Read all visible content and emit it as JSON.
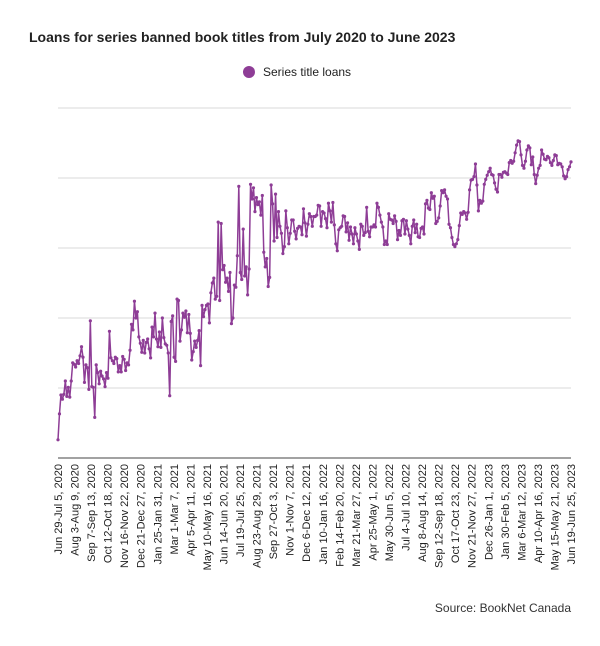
{
  "source_text": "Source: BookNet Canada",
  "colors": {
    "series": "#8e3d96",
    "grid": "#d9d9d9",
    "axis": "#444444"
  },
  "chart_data": {
    "type": "line",
    "title": "Loans for series banned book titles from July 2020 to June 2023",
    "xlabel": "",
    "ylabel": "",
    "ylim": [
      0,
      500
    ],
    "y_gridlines": [
      0,
      100,
      200,
      300,
      400,
      500
    ],
    "y_tick_labels_visible": false,
    "grid": true,
    "legend_position": "top-center",
    "x_tick_labels": [
      "Jun 29-Jul 5, 2020",
      "Aug 3-Aug 9, 2020",
      "Sep 7-Sep 13, 2020",
      "Oct 12-Oct 18, 2020",
      "Nov 16-Nov 22, 2020",
      "Dec 21-Dec 27, 2020",
      "Jan 25-Jan 31, 2021",
      "Mar 1-Mar 7, 2021",
      "Apr 5-Apr 11, 2021",
      "May 10-May 16, 2021",
      "Jun 14-Jun 20, 2021",
      "Jul 19-Jul 25, 2021",
      "Aug 23-Aug 29, 2021",
      "Sep 27-Oct 3, 2021",
      "Nov 1-Nov 7, 2021",
      "Dec 6-Dec 12, 2021",
      "Jan 10-Jan 16, 2022",
      "Feb 14-Feb 20, 2022",
      "Mar 21-Mar 27, 2022",
      "Apr 25-May 1, 2022",
      "May 30-Jun 5, 2022",
      "Jul 4-Jul 10, 2022",
      "Aug 8-Aug 14, 2022",
      "Sep 12-Sep 18, 2022",
      "Oct 17-Oct 23, 2022",
      "Nov 21-Nov 27, 2022",
      "Dec 26-Jan 1, 2023",
      "Jan 30-Feb 5, 2023",
      "Mar 6-Mar 12, 2023",
      "Apr 10-Apr 16, 2023",
      "May 15-May 21, 2023",
      "Jun 19-Jun 25, 2023"
    ],
    "series": [
      {
        "name": "Series title loans",
        "values": [
          26,
          63,
          90,
          84,
          91,
          110,
          88,
          101,
          87,
          110,
          136,
          134,
          130,
          139,
          135,
          146,
          159,
          144,
          108,
          133,
          129,
          98,
          196,
          102,
          101,
          58,
          133,
          122,
          106,
          124,
          117,
          113,
          102,
          122,
          114,
          181,
          143,
          139,
          135,
          144,
          142,
          123,
          132,
          123,
          145,
          141,
          125,
          136,
          133,
          154,
          191,
          183,
          224,
          200,
          209,
          173,
          164,
          151,
          168,
          150,
          165,
          170,
          156,
          143,
          187,
          173,
          207,
          170,
          159,
          180,
          158,
          200,
          172,
          163,
          161,
          150,
          89,
          195,
          203,
          144,
          138,
          227,
          225,
          167,
          183,
          207,
          201,
          210,
          179,
          205,
          178,
          140,
          152,
          167,
          158,
          168,
          182,
          132,
          218,
          202,
          212,
          218,
          220,
          193,
          236,
          250,
          257,
          227,
          231,
          337,
          225,
          335,
          269,
          275,
          251,
          257,
          238,
          265,
          192,
          200,
          247,
          244,
          289,
          388,
          265,
          255,
          327,
          260,
          273,
          233,
          270,
          391,
          370,
          386,
          352,
          372,
          362,
          366,
          347,
          375,
          294,
          273,
          285,
          245,
          258,
          390,
          363,
          310,
          377,
          315,
          352,
          331,
          321,
          292,
          302,
          353,
          329,
          306,
          321,
          340,
          340,
          324,
          313,
          328,
          331,
          330,
          319,
          356,
          336,
          317,
          334,
          349,
          345,
          331,
          345,
          345,
          347,
          361,
          360,
          331,
          352,
          350,
          342,
          329,
          364,
          353,
          337,
          365,
          333,
          306,
          296,
          326,
          329,
          331,
          346,
          345,
          323,
          336,
          311,
          330,
          320,
          306,
          329,
          320,
          310,
          298,
          334,
          331,
          318,
          322,
          358,
          324,
          316,
          330,
          330,
          333,
          330,
          364,
          358,
          347,
          337,
          330,
          305,
          310,
          305,
          349,
          341,
          340,
          335,
          346,
          338,
          312,
          325,
          318,
          339,
          341,
          320,
          339,
          327,
          318,
          306,
          331,
          340,
          322,
          334,
          316,
          315,
          328,
          330,
          320,
          363,
          368,
          357,
          355,
          379,
          371,
          374,
          335,
          338,
          343,
          360,
          382,
          379,
          383,
          374,
          370,
          334,
          329,
          315,
          305,
          302,
          306,
          312,
          332,
          350,
          348,
          352,
          350,
          341,
          351,
          383,
          397,
          398,
          402,
          420,
          390,
          353,
          368,
          364,
          367,
          391,
          398,
          404,
          409,
          414,
          405,
          404,
          393,
          384,
          380,
          405,
          405,
          401,
          408,
          409,
          407,
          405,
          422,
          425,
          421,
          424,
          436,
          447,
          453,
          452,
          433,
          418,
          414,
          424,
          440,
          446,
          443,
          419,
          430,
          405,
          392,
          404,
          414,
          418,
          440,
          434,
          427,
          426,
          431,
          429,
          422,
          418,
          425,
          433,
          432,
          419,
          421,
          420,
          416,
          403,
          399,
          402,
          412,
          416,
          423
        ]
      }
    ]
  }
}
